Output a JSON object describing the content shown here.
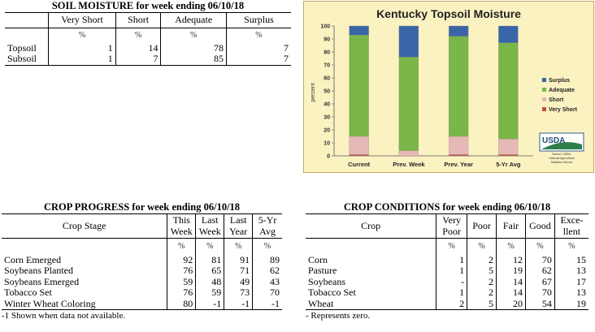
{
  "soil": {
    "title": "SOIL MOISTURE for week ending 06/10/18",
    "columns": [
      "Very Short",
      "Short",
      "Adequate",
      "Surplus"
    ],
    "unit": "%",
    "rows": [
      {
        "label": "Topsoil",
        "values": [
          "1",
          "14",
          "78",
          "7"
        ]
      },
      {
        "label": "Subsoil",
        "values": [
          "1",
          "7",
          "85",
          "7"
        ]
      }
    ]
  },
  "chart_data": {
    "type": "bar",
    "stacked": true,
    "title": "Kentucky Topsoil Moisture",
    "ylabel": "percent",
    "ylim": [
      0,
      100
    ],
    "yticks": [
      0,
      10,
      20,
      30,
      40,
      50,
      60,
      70,
      80,
      90,
      100
    ],
    "categories": [
      "Current",
      "Prev. Week",
      "Prev. Year",
      "5-Yr Avg"
    ],
    "series": [
      {
        "name": "Very Short",
        "color": "#c0504d",
        "values": [
          1,
          0,
          1,
          1
        ]
      },
      {
        "name": "Short",
        "color": "#e6b8b7",
        "values": [
          14,
          4,
          14,
          12
        ]
      },
      {
        "name": "Adequate",
        "color": "#7ab648",
        "values": [
          78,
          72,
          77,
          74
        ]
      },
      {
        "name": "Surplus",
        "color": "#3a66a8",
        "values": [
          7,
          24,
          8,
          13
        ]
      }
    ],
    "legend_order": [
      "Surplus",
      "Adequate",
      "Short",
      "Very Short"
    ],
    "legend_position": "right",
    "logo_text": "USDA",
    "source": [
      "Source: USDA,",
      "National Agricultural",
      "Statistics Service"
    ]
  },
  "progress": {
    "title": "CROP PROGRESS for week ending 06/10/18",
    "stage_header": "Crop Stage",
    "headers": [
      [
        "This",
        "Week"
      ],
      [
        "Last",
        "Week"
      ],
      [
        "Last",
        "Year"
      ],
      [
        "5-Yr",
        "Avg"
      ]
    ],
    "unit": "%",
    "rows": [
      {
        "label": "Corn Emerged",
        "values": [
          "92",
          "81",
          "91",
          "89"
        ]
      },
      {
        "label": "Soybeans Planted",
        "values": [
          "76",
          "65",
          "71",
          "62"
        ]
      },
      {
        "label": "Soybeans Emerged",
        "values": [
          "59",
          "48",
          "49",
          "43"
        ]
      },
      {
        "label": "Tobacco Set",
        "values": [
          "76",
          "59",
          "73",
          "70"
        ]
      },
      {
        "label": "Winter Wheat Coloring",
        "values": [
          "80",
          "-1",
          "-1",
          "-1"
        ]
      }
    ],
    "footnote": "-1 Shown when data not available."
  },
  "conditions": {
    "title": "CROP CONDITIONS for week ending 06/10/18",
    "crop_header": "Crop",
    "headers": [
      [
        "Very",
        "Poor"
      ],
      [
        "Poor"
      ],
      [
        "Fair"
      ],
      [
        "Good"
      ],
      [
        "Exce-",
        "llent"
      ]
    ],
    "unit": "%",
    "rows": [
      {
        "label": "Corn",
        "values": [
          "1",
          "2",
          "12",
          "70",
          "15"
        ]
      },
      {
        "label": "Pasture",
        "values": [
          "1",
          "5",
          "19",
          "62",
          "13"
        ]
      },
      {
        "label": "Soybeans",
        "values": [
          "-",
          "2",
          "14",
          "67",
          "17"
        ]
      },
      {
        "label": "Tobacco Set",
        "values": [
          "1",
          "2",
          "14",
          "70",
          "13"
        ]
      },
      {
        "label": "Wheat",
        "values": [
          "2",
          "5",
          "20",
          "54",
          "19"
        ]
      }
    ],
    "footnote": "- Represents zero."
  }
}
